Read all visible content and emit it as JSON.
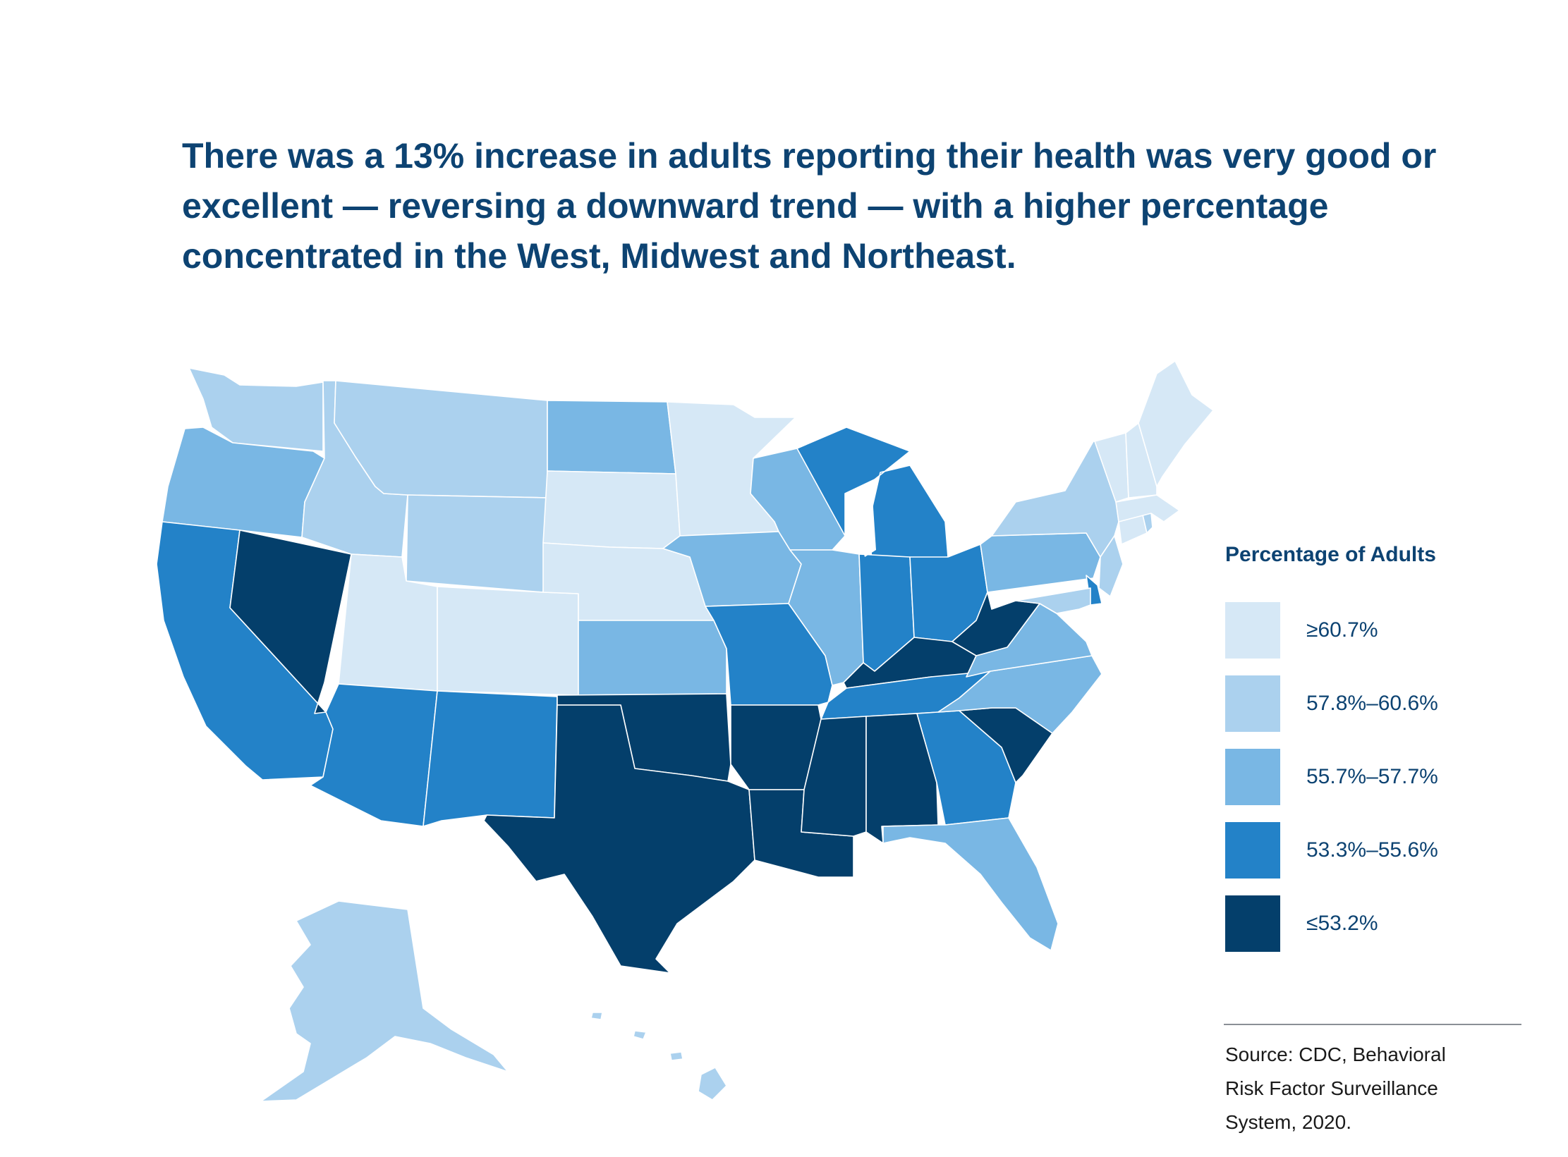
{
  "headline": "There was a 13% increase in adults reporting their health was very good or excellent — reversing a downward trend — with a higher percentage concentrated in the West, Midwest and Northeast.",
  "legend": {
    "title": "Percentage of Adults",
    "items": [
      {
        "label": "≥60.7%",
        "color": "#d6e8f6"
      },
      {
        "label": "57.8%–60.6%",
        "color": "#abd1ee"
      },
      {
        "label": "55.7%–57.7%",
        "color": "#79b7e4"
      },
      {
        "label": "53.3%–55.6%",
        "color": "#2382c8"
      },
      {
        "label": "≤53.2%",
        "color": "#043f6b"
      }
    ]
  },
  "source": {
    "lines": [
      "Source: CDC, Behavioral",
      "Risk Factor Surveillance",
      "System, 2020."
    ]
  },
  "map_data": {
    "states": {
      "WA": 1,
      "OR": 2,
      "CA": 3,
      "NV": 4,
      "ID": 1,
      "MT": 1,
      "WY": 1,
      "UT": 0,
      "CO": 0,
      "AZ": 3,
      "NM": 3,
      "ND": 2,
      "SD": 0,
      "NE": 0,
      "KS": 2,
      "OK": 4,
      "TX": 4,
      "MN": 0,
      "IA": 2,
      "MO": 3,
      "AR": 4,
      "LA": 4,
      "WI": 2,
      "IL": 2,
      "MI": 3,
      "IN": 3,
      "OH": 3,
      "KY": 4,
      "TN": 3,
      "MS": 4,
      "AL": 4,
      "GA": 3,
      "FL": 2,
      "SC": 4,
      "NC": 2,
      "VA": 2,
      "WV": 4,
      "PA": 2,
      "NY": 1,
      "ME": 0,
      "NH": 0,
      "VT": 0,
      "MA": 0,
      "CT": 0,
      "RI": 1,
      "NJ": 1,
      "DE": 3,
      "MD": 1,
      "AK": 1,
      "HI": 1
    }
  }
}
